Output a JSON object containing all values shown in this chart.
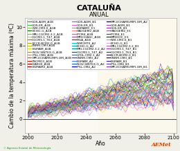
{
  "title": "CATALUÑA",
  "subtitle": "ANUAL",
  "xlabel": "Año",
  "ylabel": "Cambio de la temperatura máxima (ºC)",
  "xlim": [
    1998,
    2102
  ],
  "ylim": [
    -1.5,
    11
  ],
  "yticks": [
    0,
    2,
    4,
    6,
    8,
    10
  ],
  "xticks": [
    2000,
    2020,
    2040,
    2060,
    2080,
    2100
  ],
  "background_color": "#f0f0e8",
  "plot_bg": "#ffffff",
  "plot_bg_beige": "#faf5e0",
  "beige_start": 2048,
  "n_series": 58,
  "x_start": 2000,
  "x_end": 2100,
  "seed": 42,
  "legend_entries_col1": [
    [
      "GOS-AOM_A1B",
      "#22aa22"
    ],
    [
      "GOS-ER_A1B",
      "#44bb44"
    ],
    [
      "INM-CM3.0_A1B",
      "#88cc44"
    ],
    [
      "ECHO-G_A1B",
      "#006600"
    ],
    [
      "MRI-CGCM2.3.2_A1B",
      "#66cc00"
    ],
    [
      "CGCM3.1_T47_A1B",
      "#aadd00"
    ],
    [
      "CGCM3.1_T63_A1B",
      "#888800"
    ],
    [
      "BCCR-BCM2.0_A1B",
      "#aaaa00"
    ],
    [
      "CNRM-CM3.A1B",
      "#cccc00"
    ],
    [
      "EGMAM_A1B",
      "#dddd00"
    ],
    [
      "INGV-SINTEX-G_A1B",
      "#cc8800"
    ],
    [
      "IPSL-CM4_A1B",
      "#ee8800"
    ],
    [
      "MPI-ECHAM5/MPI-OM_A1B",
      "#ff4400"
    ],
    [
      "CNCMO3_A1B",
      "#cc2200"
    ],
    [
      "GIAEH0_A1B",
      "#aa0000"
    ],
    [
      "EGMAM2_A1B",
      "#880000"
    ],
    [
      "GOS-AOM_B1",
      "#cc44cc"
    ],
    [
      "GOS-ER_B1",
      "#dd66dd"
    ],
    [
      "EGMAMC_E1",
      "#999999"
    ]
  ],
  "legend_entries_col2": [
    [
      "HADGEM2_A1B",
      "#ff88aa"
    ],
    [
      "IPCM4_A1B",
      "#ff44bb"
    ],
    [
      "MPECHASC_A1B",
      "#ee22cc"
    ],
    [
      "MGA_A1B",
      "#cc0088"
    ],
    [
      "INMCMT0_A2",
      "#00cccc"
    ],
    [
      "ECHO-G_A2",
      "#00aaaa"
    ],
    [
      "MRI-CGCM2.3.2_A2",
      "#008888"
    ],
    [
      "CGCM3.1_T47_A2",
      "#006688"
    ],
    [
      "GFDL-CM2.1_A2",
      "#4466bb"
    ],
    [
      "CNRM-CM3_A2",
      "#2244dd"
    ],
    [
      "EGMAM_A2",
      "#4488ee"
    ],
    [
      "INGV-SINTEX-G_A2",
      "#2266cc"
    ],
    [
      "IPSL-CM4_A2",
      "#0000cc"
    ],
    [
      "MPI-ECHAM5/MPI-OM_A2",
      "#0000aa"
    ],
    [
      "GOS-AOM_B1",
      "#bb44bb"
    ],
    [
      "GOS-ER_B1",
      "#9933cc"
    ],
    [
      "HADGEM2_E1",
      "#777777"
    ],
    [
      "IPCM4_E1",
      "#555555"
    ],
    [
      "MPEHOC_E1",
      "#333333"
    ]
  ],
  "legend_entries_col3": [
    [
      "INM-CM3.0_B1",
      "#cc88cc"
    ],
    [
      "ECHO-G_B1",
      "#ddaadd"
    ],
    [
      "MRI-CGCM2.3.2_B1",
      "#bb66bb"
    ],
    [
      "CGCM3.1_T47_B1",
      "#9944aa"
    ],
    [
      "CGCM3.1_T63_B1",
      "#7722aa"
    ],
    [
      "BCCR-BCM2.0_B1",
      "#551188"
    ],
    [
      "CNRM-CM3_B1",
      "#330088"
    ],
    [
      "EGMAM_B1",
      "#442299"
    ],
    [
      "IPSL-CM4_B1",
      "#6644bb"
    ],
    [
      "MPI-ECHAM5/MPI-OM_B1",
      "#8833cc"
    ],
    [
      "",
      ""
    ],
    [
      "",
      ""
    ],
    [
      "",
      ""
    ],
    [
      "",
      ""
    ],
    [
      "",
      ""
    ],
    [
      "",
      ""
    ],
    [
      "",
      ""
    ],
    [
      "",
      ""
    ],
    [
      "",
      ""
    ]
  ],
  "title_fontsize": 8,
  "subtitle_fontsize": 6,
  "axis_fontsize": 5.5,
  "tick_fontsize": 5,
  "legend_fontsize": 3.2,
  "line_alpha": 0.75,
  "line_width": 0.35
}
